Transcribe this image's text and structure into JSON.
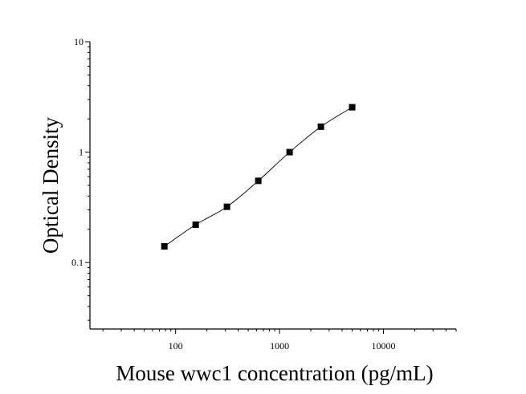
{
  "chart_data": {
    "type": "scatter",
    "xlabel": "Mouse wwc1 concentration (pg/mL)",
    "ylabel": "Optical Density",
    "xscale": "log",
    "yscale": "log",
    "xlim": [
      15,
      50000
    ],
    "ylim": [
      0.025,
      10
    ],
    "x_ticks": [
      "100",
      "1000",
      "10000"
    ],
    "y_ticks": [
      "10",
      "1",
      "0.1"
    ],
    "grid": false,
    "legend": "none",
    "fit_curve": true,
    "points": {
      "x": [
        78,
        156,
        312,
        625,
        1250,
        2500,
        5000
      ],
      "y": [
        0.14,
        0.22,
        0.32,
        0.55,
        1.0,
        1.7,
        2.55
      ]
    },
    "marker_color": "#000000",
    "line_color": "#000000"
  }
}
